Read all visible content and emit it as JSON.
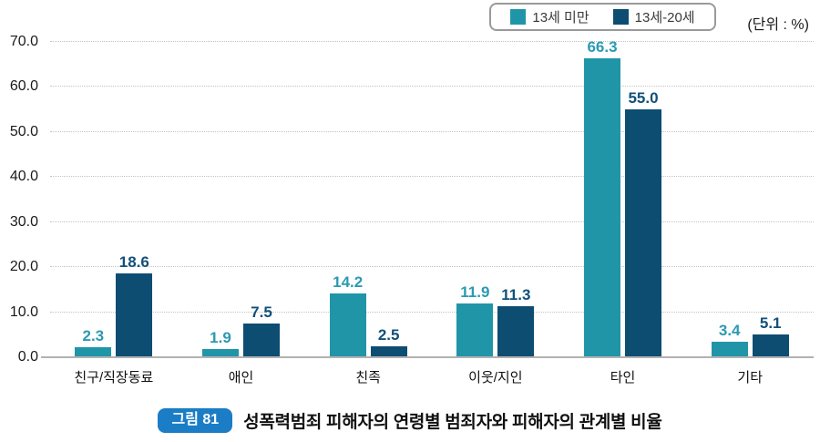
{
  "unit_label": "(단위 : %)",
  "legend": [
    {
      "label": "13세 미만",
      "color": "#2095a8"
    },
    {
      "label": "13세-20세",
      "color": "#0d4d72"
    }
  ],
  "chart_data": {
    "type": "bar",
    "title": "",
    "xlabel": "",
    "ylabel": "",
    "categories": [
      "친구/직장동료",
      "애인",
      "친족",
      "이웃/지인",
      "타인",
      "기타"
    ],
    "series": [
      {
        "name": "13세 미만",
        "color": "#2095a8",
        "label_color": "#2b9ab2",
        "values": [
          2.3,
          1.9,
          14.2,
          11.9,
          66.3,
          3.4
        ]
      },
      {
        "name": "13세-20세",
        "color": "#0d4d72",
        "label_color": "#11507a",
        "values": [
          18.6,
          7.5,
          2.5,
          11.3,
          55.0,
          5.1
        ]
      }
    ],
    "ylim": [
      0,
      70
    ],
    "yticks": [
      0,
      10,
      20,
      30,
      40,
      50,
      60,
      70
    ],
    "ytick_labels": [
      "0.0",
      "10.0",
      "20.0",
      "30.0",
      "40.0",
      "50.0",
      "60.0",
      "70.0"
    ],
    "grid": "horizontal-dotted",
    "legend_position": "top-right",
    "value_labels": "above-bars"
  },
  "caption": {
    "badge": "그림 81",
    "badge_color": "#1b7dc6",
    "text": "성폭력범죄 피해자의 연령별 범죄자와 피해자의 관계별 비율"
  }
}
